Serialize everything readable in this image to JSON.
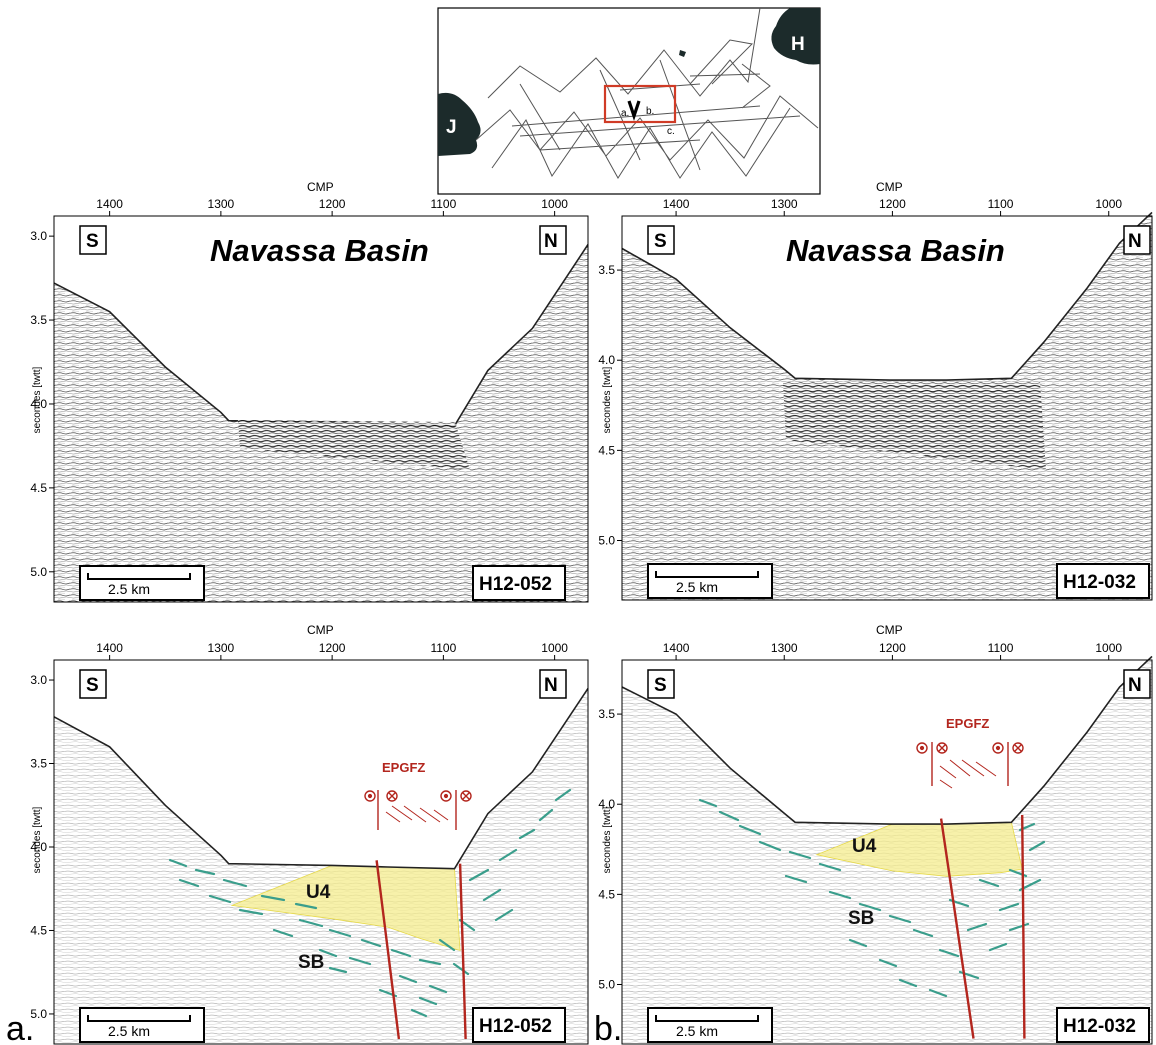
{
  "figure": {
    "cmp_axis_label": "CMP",
    "y_axis_label": "secondes [twtt]",
    "scale_bar_label": "2.5 km",
    "basin_title": "Navassa Basin",
    "south_label": "S",
    "north_label": "N",
    "fault_zone_label": "EPGFZ",
    "unit_labels": [
      "U4",
      "SB"
    ],
    "panel_letters": [
      "a.",
      "b."
    ]
  },
  "inset_map": {
    "land_labels": [
      "J",
      "H"
    ],
    "profile_labels": [
      "a.",
      "b.",
      "c."
    ],
    "colors": {
      "land": "#1c2b2b",
      "box": "#d03b26",
      "tracks": "#555555"
    }
  },
  "chart_data": [
    {
      "type": "seismic-profile",
      "line_id": "H12-052",
      "interpreted": false,
      "x_ticks": [
        1400,
        1300,
        1200,
        1100,
        1000
      ],
      "y_ticks": [
        3.0,
        3.5,
        4.0,
        4.5,
        5.0
      ],
      "xlim": [
        1450,
        970
      ],
      "ylim": [
        2.88,
        5.18
      ],
      "seafloor": {
        "cmp": [
          1450,
          1400,
          1350,
          1300,
          1293,
          1200,
          1150,
          1090,
          1060,
          1020,
          990,
          970
        ],
        "twtt": [
          3.28,
          3.45,
          3.78,
          4.05,
          4.1,
          4.11,
          4.12,
          4.13,
          3.8,
          3.55,
          3.25,
          3.05
        ]
      }
    },
    {
      "type": "seismic-profile",
      "line_id": "H12-032",
      "interpreted": false,
      "x_ticks": [
        1400,
        1300,
        1200,
        1100,
        1000
      ],
      "y_ticks": [
        3.5,
        4.0,
        4.5,
        5.0
      ],
      "xlim": [
        1450,
        960
      ],
      "ylim": [
        3.2,
        5.33
      ],
      "seafloor": {
        "cmp": [
          1450,
          1400,
          1350,
          1300,
          1290,
          1200,
          1150,
          1090,
          1060,
          1020,
          990,
          960
        ],
        "twtt": [
          3.38,
          3.55,
          3.82,
          4.05,
          4.1,
          4.11,
          4.11,
          4.1,
          3.9,
          3.6,
          3.35,
          3.18
        ]
      }
    },
    {
      "type": "seismic-profile",
      "line_id": "H12-052",
      "interpreted": true,
      "x_ticks": [
        1400,
        1300,
        1200,
        1100,
        1000
      ],
      "y_ticks": [
        3.0,
        3.5,
        4.0,
        4.5,
        5.0
      ],
      "xlim": [
        1450,
        970
      ],
      "ylim": [
        2.88,
        5.18
      ],
      "seafloor": {
        "cmp": [
          1450,
          1400,
          1350,
          1300,
          1293,
          1200,
          1150,
          1090,
          1060,
          1020,
          990,
          970
        ],
        "twtt": [
          3.22,
          3.4,
          3.75,
          4.05,
          4.1,
          4.11,
          4.12,
          4.13,
          3.8,
          3.55,
          3.25,
          3.05
        ]
      },
      "u4_base": {
        "cmp": [
          1290,
          1200,
          1150,
          1120,
          1085
        ],
        "twtt": [
          4.35,
          4.43,
          4.48,
          4.55,
          4.62
        ]
      },
      "faults_cmp": [
        [
          1160,
          1140
        ],
        [
          1085,
          1080
        ]
      ],
      "faults_twtt": [
        [
          4.08,
          5.15
        ],
        [
          4.1,
          5.15
        ]
      ]
    },
    {
      "type": "seismic-profile",
      "line_id": "H12-032",
      "interpreted": true,
      "x_ticks": [
        1400,
        1300,
        1200,
        1100,
        1000
      ],
      "y_ticks": [
        3.5,
        4.0,
        4.5,
        5.0
      ],
      "xlim": [
        1450,
        960
      ],
      "ylim": [
        3.2,
        5.33
      ],
      "seafloor": {
        "cmp": [
          1450,
          1400,
          1350,
          1300,
          1290,
          1200,
          1150,
          1090,
          1060,
          1020,
          990,
          960
        ],
        "twtt": [
          3.35,
          3.5,
          3.8,
          4.05,
          4.1,
          4.11,
          4.11,
          4.1,
          3.9,
          3.6,
          3.35,
          3.18
        ]
      },
      "u4_base": {
        "cmp": [
          1270,
          1200,
          1150,
          1100,
          1080
        ],
        "twtt": [
          4.28,
          4.37,
          4.4,
          4.38,
          4.36
        ]
      },
      "faults_cmp": [
        [
          1155,
          1125
        ],
        [
          1080,
          1078
        ]
      ],
      "faults_twtt": [
        [
          4.08,
          5.3
        ],
        [
          4.06,
          5.3
        ]
      ]
    }
  ]
}
